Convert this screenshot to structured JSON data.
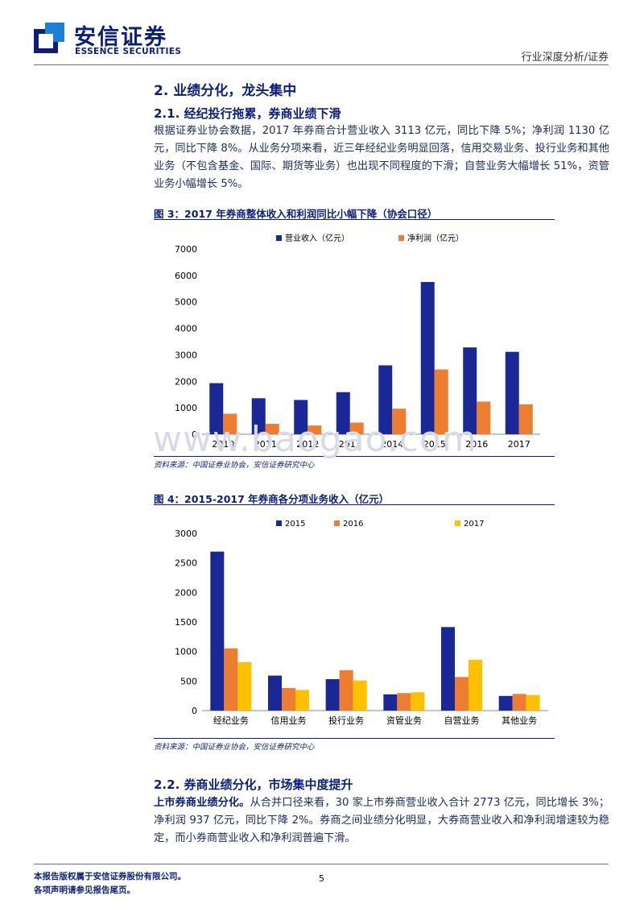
{
  "header": {
    "logo_cn": "安信证券",
    "logo_en": "ESSENCE SECURITIES",
    "category": "行业深度分析/证券",
    "colors": {
      "brand": "#0b1f7a",
      "accent": "#1e7fd8"
    }
  },
  "section": {
    "title": "2. 业绩分化，龙头集中",
    "sub1_title": "2.1. 经纪投行拖累，券商业绩下滑",
    "para1": "根据证券业协会数据，2017 年券商合计营业收入 3113 亿元，同比下降 5%；净利润 1130 亿元，同比下降 8%。从业务分项来看，近三年经纪业务明显回落，信用交易业务、投行业务和其他业务（不包含基金、国际、期货等业务）也出现不同程度的下滑；自营业务大幅增长 51%，资管业务小幅增长 5%。",
    "sub2_title": "2.2. 券商业绩分化，市场集中度提升",
    "para2_bold": "上市券商业绩分化。",
    "para2": "从合并口径来看，30 家上市券商营业收入合计 2773 亿元，同比增长 3%；净利润 937 亿元，同比下降 2%。券商之间业绩分化明显，大券商营业收入和净利润增速较为稳定，而小券商营业收入和净利润普遍下滑。"
  },
  "figure3": {
    "title": "图 3：2017 年券商整体收入和利润同比小幅下降（协会口径）",
    "source": "资料来源：中国证券业协会，安信证券研究中心"
  },
  "figure4": {
    "title": "图 4：2015-2017 年券商各分项业务收入（亿元）",
    "source": "资料来源：中国证券业协会，安信证券研究中心"
  },
  "chart_data": [
    {
      "type": "bar",
      "categories": [
        "2010",
        "2011",
        "2012",
        "2013",
        "2014",
        "2015",
        "2016",
        "2017"
      ],
      "series": [
        {
          "name": "营业收入（亿元）",
          "color": "#1a2896",
          "values": [
            1930,
            1360,
            1295,
            1590,
            2603,
            5752,
            3280,
            3113
          ]
        },
        {
          "name": "净利润（亿元）",
          "color": "#ed7d31",
          "values": [
            775,
            394,
            329,
            440,
            966,
            2448,
            1234,
            1130
          ]
        }
      ],
      "ylim": [
        0,
        7000
      ],
      "yticks": [
        0,
        1000,
        2000,
        3000,
        4000,
        5000,
        6000,
        7000
      ],
      "legend": "top",
      "grid": false
    },
    {
      "type": "bar",
      "categories": [
        "经纪业务",
        "信用业务",
        "投行业务",
        "资管业务",
        "自营业务",
        "其他业务"
      ],
      "series": [
        {
          "name": "2015",
          "color": "#1a2896",
          "values": [
            2691,
            592,
            532,
            275,
            1414,
            248
          ]
        },
        {
          "name": "2016",
          "color": "#ed7d31",
          "values": [
            1053,
            382,
            684,
            296,
            568,
            282
          ]
        },
        {
          "name": "2017",
          "color": "#ffc000",
          "values": [
            820,
            348,
            510,
            310,
            861,
            262
          ]
        }
      ],
      "ylim": [
        0,
        3000
      ],
      "yticks": [
        0,
        500,
        1000,
        1500,
        2000,
        2500,
        3000
      ],
      "legend": "top",
      "grid": false
    }
  ],
  "watermark": "www.baogao.com",
  "footer": {
    "line1": "本报告版权属于安信证券股份有限公司。",
    "line2": "各项声明请参见报告尾页。",
    "page": "5"
  }
}
